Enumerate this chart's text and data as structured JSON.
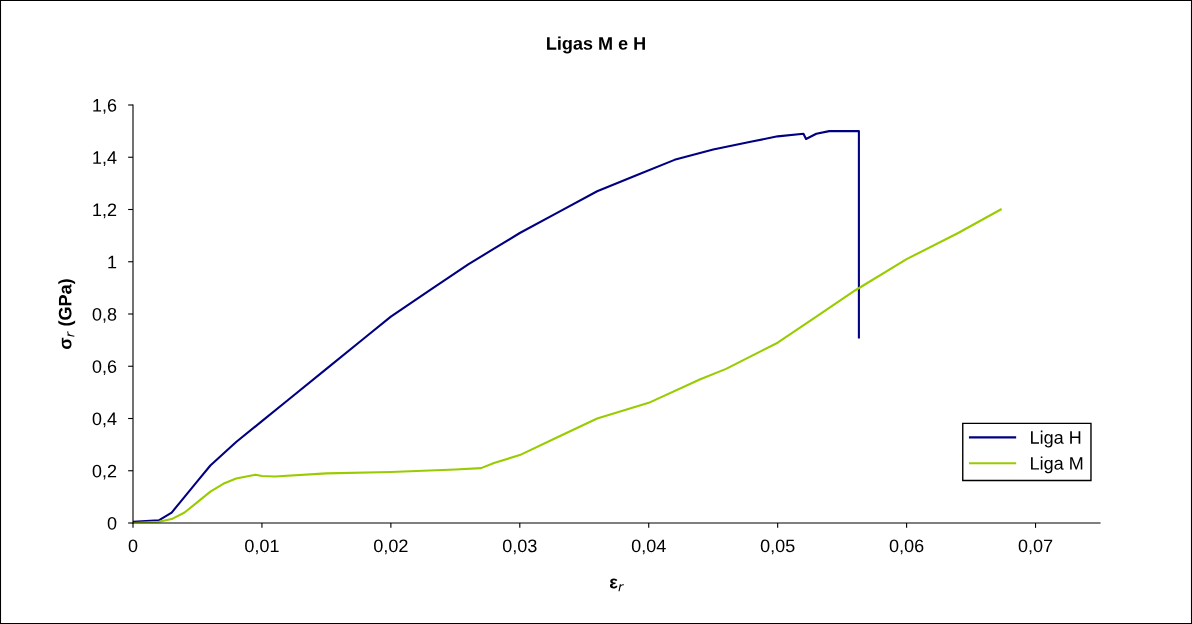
{
  "chart_data": {
    "type": "line",
    "title": "Ligas M e H",
    "xlabel": "ε$_{r}$",
    "ylabel": "σ$_{r}$ (GPa)",
    "xlim": [
      0,
      0.075
    ],
    "xticks": [
      0,
      {
        "value": 0.01,
        "label": "0,01"
      },
      {
        "value": 0.02,
        "label": "0,02"
      },
      {
        "value": 0.03,
        "label": "0,03"
      },
      {
        "value": 0.04,
        "label": "0,04"
      },
      {
        "value": 0.05,
        "label": "0,05"
      },
      {
        "value": 0.06,
        "label": "0,06"
      },
      {
        "value": 0.07,
        "label": "0,07"
      }
    ],
    "ylim": [
      0,
      1.6
    ],
    "yticks": [
      0,
      {
        "value": 0.2,
        "label": "0,2"
      },
      {
        "value": 0.4,
        "label": "0,4"
      },
      {
        "value": 0.6,
        "label": "0,6"
      },
      {
        "value": 0.8,
        "label": "0,8"
      },
      1,
      {
        "value": 1.2,
        "label": "1,2"
      },
      {
        "value": 1.4,
        "label": "1,4"
      },
      {
        "value": 1.6,
        "label": "1,6"
      }
    ],
    "grid": false,
    "legend": "bottom right",
    "marker": "none",
    "line_style": "solid",
    "series": [
      {
        "name": "Liga H",
        "color": "#000080",
        "x": [
          0,
          0.002,
          0.003,
          0.004,
          0.005,
          0.006,
          0.008,
          0.01,
          0.012,
          0.015,
          0.018,
          0.02,
          0.023,
          0.026,
          0.028,
          0.03,
          0.033,
          0.036,
          0.039,
          0.042,
          0.045,
          0.048,
          0.05,
          0.052,
          0.0522,
          0.053,
          0.054,
          0.0563,
          0.0563
        ],
        "values": [
          0.005,
          0.01,
          0.04,
          0.1,
          0.16,
          0.22,
          0.31,
          0.39,
          0.47,
          0.59,
          0.71,
          0.79,
          0.89,
          0.99,
          1.05,
          1.11,
          1.19,
          1.27,
          1.33,
          1.39,
          1.43,
          1.46,
          1.48,
          1.49,
          1.47,
          1.49,
          1.5,
          1.5,
          0.71
        ]
      },
      {
        "name": "Liga M",
        "color": "#99cc00",
        "x": [
          0,
          0.002,
          0.003,
          0.004,
          0.005,
          0.006,
          0.007,
          0.008,
          0.0095,
          0.01,
          0.011,
          0.015,
          0.02,
          0.025,
          0.027,
          0.028,
          0.03,
          0.033,
          0.036,
          0.04,
          0.044,
          0.046,
          0.05,
          0.053,
          0.056,
          0.06,
          0.064,
          0.0673
        ],
        "values": [
          0,
          0.005,
          0.015,
          0.04,
          0.08,
          0.12,
          0.15,
          0.17,
          0.185,
          0.18,
          0.178,
          0.19,
          0.195,
          0.205,
          0.21,
          0.23,
          0.26,
          0.33,
          0.4,
          0.46,
          0.55,
          0.59,
          0.69,
          0.79,
          0.89,
          1.01,
          1.11,
          1.2
        ]
      }
    ]
  }
}
